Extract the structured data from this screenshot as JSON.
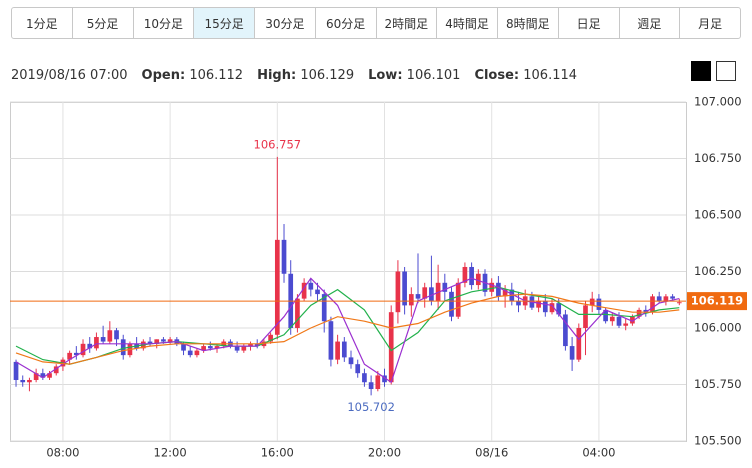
{
  "buttons": [
    {
      "label": "1分足"
    },
    {
      "label": "5分足"
    },
    {
      "label": "10分足"
    },
    {
      "label": "15分足",
      "selected": true
    },
    {
      "label": "30分足"
    },
    {
      "label": "60分足"
    },
    {
      "label": "2時間足"
    },
    {
      "label": "4時間足"
    },
    {
      "label": "8時間足"
    },
    {
      "label": "日足"
    },
    {
      "label": "週足"
    },
    {
      "label": "月足"
    }
  ],
  "header": {
    "datetime": "2019/08/16 07:00",
    "open_label": "Open:",
    "open": "106.112",
    "high_label": "High:",
    "high": "106.129",
    "low_label": "Low:",
    "low": "106.101",
    "close_label": "Close:",
    "close": "106.114"
  },
  "chart_data": {
    "type": "candlestick",
    "up_color": "#e8334a",
    "down_color": "#4b4bd0",
    "open": [
      105.85,
      105.77,
      105.76,
      105.77,
      105.8,
      105.78,
      105.8,
      105.83,
      105.86,
      105.89,
      105.88,
      105.93,
      105.91,
      105.96,
      105.94,
      105.99,
      105.95,
      105.88,
      105.93,
      105.91,
      105.94,
      105.93,
      105.95,
      105.94,
      105.95,
      105.93,
      105.9,
      105.88,
      105.9,
      105.92,
      105.91,
      105.92,
      105.94,
      105.92,
      105.9,
      105.92,
      105.93,
      105.92,
      105.94,
      105.97,
      106.39,
      106.24,
      106.0,
      106.13,
      106.2,
      106.17,
      106.15,
      106.03,
      105.86,
      105.94,
      105.87,
      105.84,
      105.8,
      105.76,
      105.73,
      105.79,
      105.76,
      106.07,
      106.25,
      106.1,
      106.15,
      106.13,
      106.18,
      106.12,
      106.2,
      106.16,
      106.05,
      106.2,
      106.27,
      106.19,
      106.24,
      106.16,
      106.2,
      106.14,
      106.17,
      106.12,
      106.1,
      106.14,
      106.09,
      106.12,
      106.07,
      106.11,
      106.06,
      105.92,
      105.86,
      106.0,
      106.1,
      106.13,
      106.08,
      106.03,
      106.05,
      106.01,
      106.02,
      106.05,
      106.08,
      106.07,
      106.14,
      106.12,
      106.14,
      106.112
    ],
    "high": [
      105.86,
      105.79,
      105.78,
      105.82,
      105.82,
      105.81,
      105.84,
      105.87,
      105.9,
      105.92,
      105.95,
      105.96,
      105.98,
      106.01,
      106.03,
      106.0,
      105.97,
      105.94,
      105.96,
      105.95,
      105.96,
      105.95,
      105.96,
      105.96,
      105.96,
      105.94,
      105.92,
      105.91,
      105.93,
      105.94,
      105.93,
      105.95,
      105.95,
      105.94,
      105.93,
      105.94,
      105.95,
      105.95,
      105.98,
      106.757,
      106.46,
      106.3,
      106.15,
      106.22,
      106.22,
      106.2,
      106.17,
      106.05,
      105.97,
      105.96,
      105.9,
      105.86,
      105.82,
      105.79,
      105.81,
      105.82,
      106.1,
      106.3,
      106.27,
      106.18,
      106.33,
      106.2,
      106.32,
      106.28,
      106.24,
      106.18,
      106.22,
      106.29,
      106.29,
      106.26,
      106.26,
      106.22,
      106.23,
      106.19,
      106.2,
      106.16,
      106.17,
      106.16,
      106.14,
      106.15,
      106.13,
      106.13,
      106.08,
      105.96,
      106.02,
      106.12,
      106.16,
      106.15,
      106.09,
      106.07,
      106.07,
      106.04,
      106.06,
      106.09,
      106.1,
      106.15,
      106.16,
      106.15,
      106.15,
      106.129
    ],
    "low": [
      105.74,
      105.74,
      105.72,
      105.76,
      105.77,
      105.77,
      105.79,
      105.81,
      105.84,
      105.86,
      105.87,
      105.89,
      105.9,
      105.93,
      105.93,
      105.92,
      105.86,
      105.87,
      105.9,
      105.9,
      105.92,
      105.91,
      105.93,
      105.93,
      105.92,
      105.88,
      105.87,
      105.87,
      105.89,
      105.9,
      105.89,
      105.91,
      105.91,
      105.89,
      105.89,
      105.9,
      105.91,
      105.91,
      105.93,
      105.95,
      106.2,
      105.97,
      105.98,
      106.12,
      106.14,
      106.12,
      105.98,
      105.83,
      105.84,
      105.85,
      105.82,
      105.78,
      105.74,
      105.702,
      105.72,
      105.74,
      105.75,
      106.02,
      106.06,
      106.05,
      106.11,
      106.09,
      106.1,
      106.08,
      106.12,
      106.03,
      106.04,
      106.18,
      106.17,
      106.17,
      106.14,
      106.14,
      106.12,
      106.09,
      106.1,
      106.07,
      106.08,
      106.08,
      106.07,
      106.05,
      106.06,
      106.05,
      105.9,
      105.81,
      105.85,
      105.88,
      106.07,
      106.06,
      106.02,
      106.01,
      106.0,
      105.99,
      106.01,
      106.04,
      106.05,
      106.06,
      106.11,
      106.1,
      106.12,
      106.101
    ],
    "close": [
      105.77,
      105.76,
      105.77,
      105.8,
      105.78,
      105.8,
      105.83,
      105.86,
      105.89,
      105.88,
      105.93,
      105.91,
      105.96,
      105.94,
      105.99,
      105.95,
      105.88,
      105.93,
      105.91,
      105.94,
      105.93,
      105.95,
      105.94,
      105.95,
      105.93,
      105.9,
      105.88,
      105.9,
      105.92,
      105.91,
      105.92,
      105.94,
      105.92,
      105.9,
      105.92,
      105.93,
      105.92,
      105.94,
      105.97,
      106.39,
      106.24,
      106.0,
      106.13,
      106.2,
      106.17,
      106.15,
      106.03,
      105.86,
      105.94,
      105.87,
      105.84,
      105.8,
      105.76,
      105.73,
      105.79,
      105.76,
      106.07,
      106.25,
      106.1,
      106.15,
      106.13,
      106.18,
      106.12,
      106.2,
      106.16,
      106.05,
      106.2,
      106.27,
      106.19,
      106.24,
      106.16,
      106.2,
      106.14,
      106.17,
      106.12,
      106.1,
      106.14,
      106.09,
      106.12,
      106.07,
      106.11,
      106.06,
      105.92,
      105.86,
      106.0,
      106.1,
      106.13,
      106.08,
      106.03,
      106.05,
      106.01,
      106.02,
      106.05,
      106.08,
      106.07,
      106.14,
      106.12,
      106.14,
      106.13,
      106.114
    ],
    "lines": [
      {
        "color": "#22b14c",
        "x": [
          0,
          4,
          8,
          12,
          16,
          20,
          24,
          28,
          32,
          36,
          40,
          44,
          48,
          52,
          56,
          60,
          64,
          68,
          72,
          76,
          80,
          84,
          88,
          92,
          96,
          99
        ],
        "values": [
          105.92,
          105.86,
          105.84,
          105.87,
          105.91,
          105.93,
          105.94,
          105.93,
          105.92,
          105.92,
          105.97,
          106.1,
          106.17,
          106.08,
          105.9,
          105.98,
          106.12,
          106.16,
          106.18,
          106.15,
          106.13,
          106.06,
          106.06,
          106.05,
          106.08,
          106.09
        ]
      },
      {
        "color": "#9b30d0",
        "x": [
          0,
          4,
          8,
          12,
          16,
          20,
          24,
          28,
          32,
          36,
          40,
          44,
          48,
          52,
          56,
          60,
          64,
          68,
          72,
          76,
          80,
          84,
          88,
          92,
          96,
          99
        ],
        "values": [
          105.85,
          105.78,
          105.86,
          105.93,
          105.93,
          105.93,
          105.94,
          105.9,
          105.92,
          105.92,
          106.05,
          106.22,
          106.1,
          105.84,
          105.76,
          106.12,
          106.17,
          106.22,
          106.18,
          106.12,
          106.1,
          105.95,
          106.08,
          106.03,
          106.11,
          106.13
        ]
      },
      {
        "color": "#f07818",
        "x": [
          0,
          4,
          8,
          12,
          16,
          20,
          24,
          28,
          32,
          36,
          40,
          44,
          48,
          52,
          56,
          60,
          64,
          68,
          72,
          76,
          80,
          84,
          88,
          92,
          96,
          99
        ],
        "values": [
          105.89,
          105.85,
          105.84,
          105.87,
          105.9,
          105.92,
          105.93,
          105.93,
          105.93,
          105.93,
          105.94,
          106.0,
          106.05,
          106.03,
          106.0,
          106.02,
          106.07,
          106.11,
          106.14,
          106.15,
          106.14,
          106.11,
          106.09,
          106.07,
          106.07,
          106.08
        ]
      }
    ],
    "annotations": [
      {
        "x": 39,
        "value": 106.757,
        "label": "106.757",
        "color": "#e8334a",
        "side": "top"
      },
      {
        "x": 53,
        "value": 105.702,
        "label": "105.702",
        "color": "#4b6bc0",
        "side": "bottom"
      }
    ],
    "current_price": {
      "value": 106.119,
      "label": "106.119",
      "color": "#f06a10"
    },
    "xlim": [
      -0.9,
      100
    ],
    "xticks": [
      {
        "value": 7,
        "label": "08:00"
      },
      {
        "value": 23,
        "label": "12:00"
      },
      {
        "value": 39,
        "label": "16:00"
      },
      {
        "value": 55,
        "label": "20:00"
      },
      {
        "value": 71,
        "label": "08/16"
      },
      {
        "value": 87,
        "label": "04:00"
      }
    ],
    "ylim": [
      105.5,
      107
    ],
    "yticks": [
      {
        "value": 105.5,
        "label": "105.500"
      },
      {
        "value": 105.75,
        "label": "105.750"
      },
      {
        "value": 106,
        "label": "106.000"
      },
      {
        "value": 106.25,
        "label": "106.250"
      },
      {
        "value": 106.5,
        "label": "106.500"
      },
      {
        "value": 106.75,
        "label": "106.750"
      },
      {
        "value": 107,
        "label": "107.000"
      }
    ],
    "grid": true
  }
}
